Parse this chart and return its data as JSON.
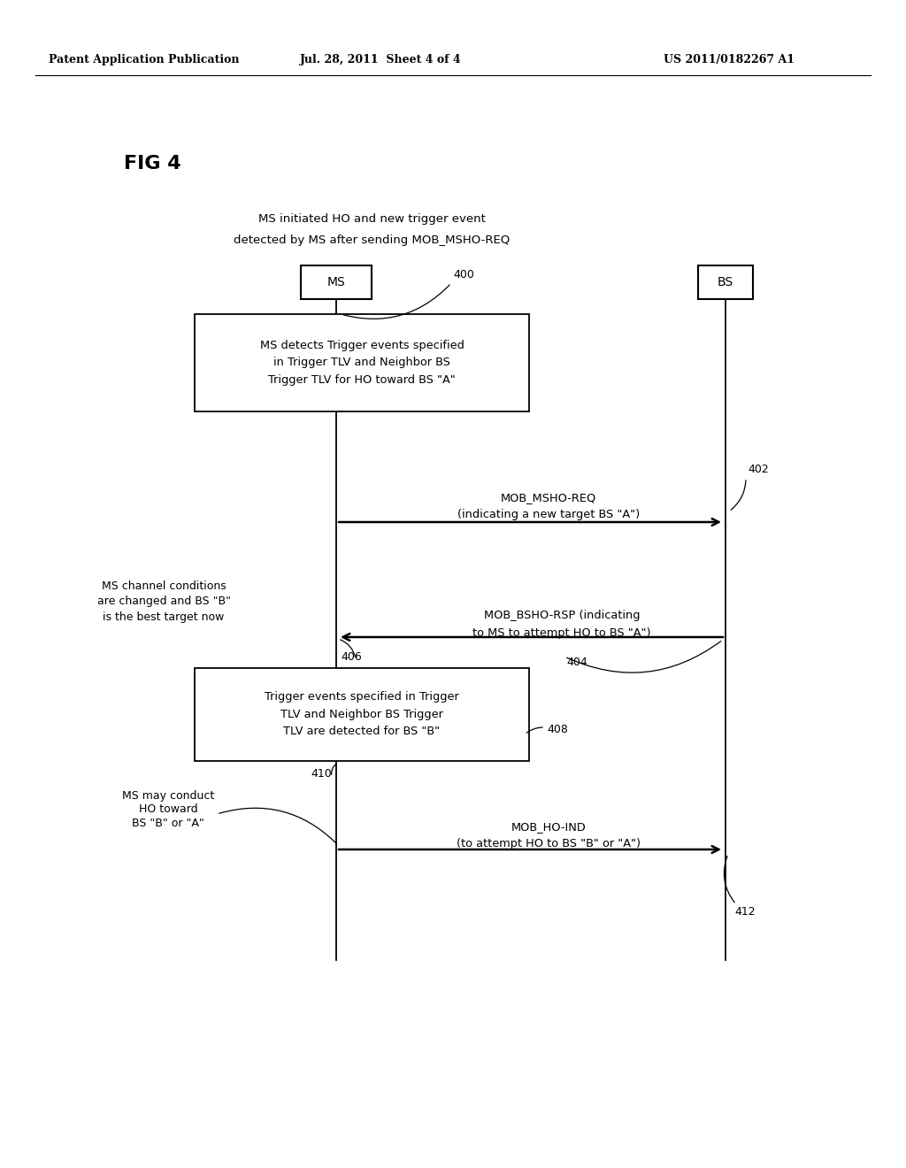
{
  "bg_color": "#ffffff",
  "header_left": "Patent Application Publication",
  "header_mid": "Jul. 28, 2011  Sheet 4 of 4",
  "header_right": "US 2011/0182267 A1",
  "fig_label": "FIG 4",
  "subtitle1": "MS initiated HO and new trigger event",
  "subtitle2": "detected by MS after sending MOB_MSHO-REQ",
  "ms_label": "MS",
  "bs_label": "BS",
  "box1_text": "MS detects Trigger events specified\nin Trigger TLV and Neighbor BS\nTrigger TLV for HO toward BS \"A\"",
  "box2_text": "Trigger events specified in Trigger\nTLV and Neighbor BS Trigger\nTLV are detected for BS \"B\"",
  "arrow1_line1": "MOB_MSHO-REQ",
  "arrow1_line2": "(indicating a new target BS \"A\")",
  "label_400": "400",
  "label_402": "402",
  "arrow2_line1": "MOB_BSHO-RSP (indicating",
  "arrow2_line2": "to MS to attempt HO to BS \"A\")",
  "label_404": "404",
  "note2_1": "MS channel conditions",
  "note2_2": "are changed and BS \"B\"",
  "note2_3": "is the best target now",
  "label_406": "406",
  "label_408": "408",
  "arrow3_line1": "MOB_HO-IND",
  "arrow3_line2": "(to attempt HO to BS \"B\" or \"A\")",
  "label_410": "410",
  "label_412": "412",
  "note3_1": "MS may conduct",
  "note3_2": "HO toward",
  "note3_3": "BS \"B\" or \"A\""
}
